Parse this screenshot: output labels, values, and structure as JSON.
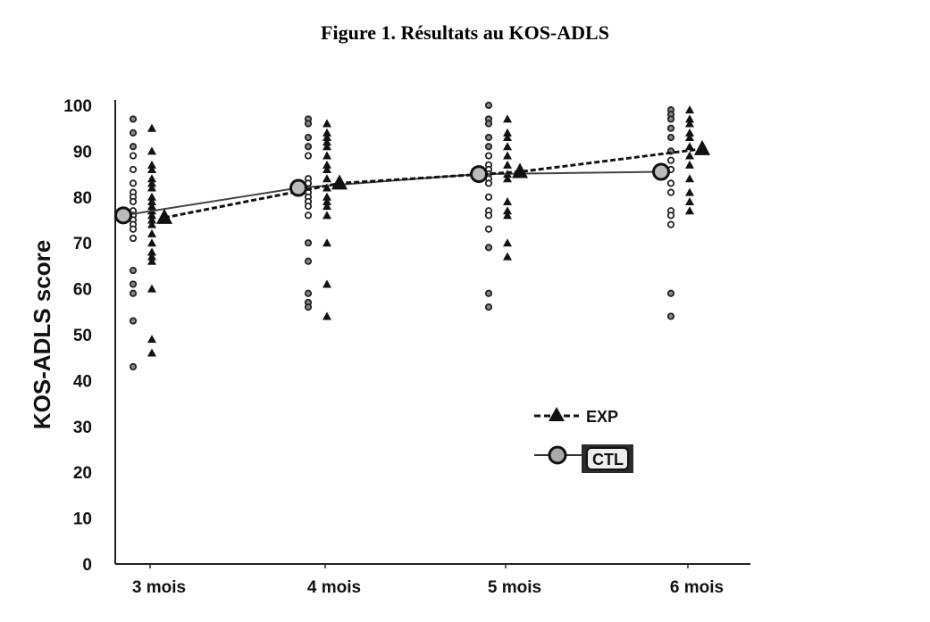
{
  "chart_data": {
    "type": "scatter",
    "title": "Figure 1. Résultats au KOS-ADLS",
    "xlabel": "",
    "ylabel": "KOS-ADLS score",
    "ylim": [
      0,
      100
    ],
    "yticks": [
      "0",
      "10",
      "20",
      "30",
      "40",
      "50",
      "60",
      "70",
      "80",
      "90",
      "100"
    ],
    "categories": [
      "3 mois",
      "4 mois",
      "5 mois",
      "6 mois"
    ],
    "grid": false,
    "legend_position": "center-right",
    "series": [
      {
        "name": "EXP",
        "marker": "triangle",
        "line": "dashed",
        "means": [
          75.5,
          83,
          85.5,
          90.5
        ],
        "points": [
          [
            95,
            90,
            87,
            86,
            84,
            83,
            82,
            80,
            79,
            78,
            77,
            76,
            75,
            74,
            72,
            70,
            68,
            67,
            66,
            60,
            49,
            46
          ],
          [
            96,
            94,
            93,
            92,
            91,
            89,
            87,
            86,
            84,
            82,
            80,
            79,
            78,
            76,
            70,
            61,
            54
          ],
          [
            97,
            94,
            93,
            91,
            89,
            87,
            85,
            84,
            79,
            77,
            76,
            70,
            67
          ],
          [
            99,
            97,
            96,
            94,
            93,
            91,
            89,
            87,
            84,
            81,
            79,
            77
          ]
        ]
      },
      {
        "name": "CTL",
        "marker": "circle",
        "line": "solid",
        "means": [
          76,
          82,
          85,
          85.5
        ],
        "points": [
          [
            97,
            94,
            91,
            89,
            86,
            83,
            81,
            80,
            79,
            77,
            76,
            75,
            74,
            73,
            71,
            64,
            61,
            59,
            53,
            43
          ],
          [
            97,
            96,
            93,
            91,
            89,
            84,
            83,
            81,
            80,
            79,
            78,
            76,
            70,
            66,
            59,
            57,
            56
          ],
          [
            100,
            97,
            96,
            93,
            91,
            89,
            87,
            86,
            85,
            84,
            83,
            80,
            77,
            76,
            73,
            69,
            59,
            56
          ],
          [
            99,
            98,
            97,
            95,
            93,
            90,
            88,
            86,
            83,
            81,
            77,
            76,
            74,
            59,
            54
          ]
        ]
      }
    ]
  }
}
